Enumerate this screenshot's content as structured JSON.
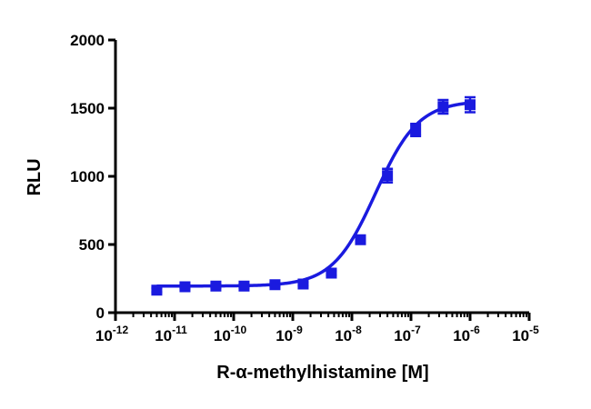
{
  "chart_data": {
    "type": "scatter",
    "title": "",
    "xlabel": "R-α-methylhistamine [M]",
    "ylabel": "RLU",
    "x_scale": "log10",
    "xlim": [
      1e-12,
      1e-05
    ],
    "ylim": [
      0,
      2000
    ],
    "x_ticks": [
      {
        "base": "10",
        "exp": "-12",
        "value": 1e-12
      },
      {
        "base": "10",
        "exp": "-11",
        "value": 1e-11
      },
      {
        "base": "10",
        "exp": "-10",
        "value": 1e-10
      },
      {
        "base": "10",
        "exp": "-9",
        "value": 1e-09
      },
      {
        "base": "10",
        "exp": "-8",
        "value": 1e-08
      },
      {
        "base": "10",
        "exp": "-7",
        "value": 1e-07
      },
      {
        "base": "10",
        "exp": "-6",
        "value": 1e-06
      },
      {
        "base": "10",
        "exp": "-5",
        "value": 1e-05
      }
    ],
    "y_ticks": [
      "0",
      "500",
      "1000",
      "1500",
      "2000"
    ],
    "grid": false,
    "legend": "none",
    "series": [
      {
        "color": "#1a1adf",
        "marker": "square",
        "fit": "sigmoidal dose-response",
        "points": [
          {
            "x": 5e-12,
            "y": 165,
            "err": 15
          },
          {
            "x": 1.5e-11,
            "y": 190,
            "err": 12
          },
          {
            "x": 5e-11,
            "y": 195,
            "err": 12
          },
          {
            "x": 1.5e-10,
            "y": 195,
            "err": 12
          },
          {
            "x": 5e-10,
            "y": 205,
            "err": 12
          },
          {
            "x": 1.5e-09,
            "y": 210,
            "err": 12
          },
          {
            "x": 4.5e-09,
            "y": 290,
            "err": 15
          },
          {
            "x": 1.4e-08,
            "y": 535,
            "err": 25
          },
          {
            "x": 4e-08,
            "y": 1005,
            "err": 50
          },
          {
            "x": 1.2e-07,
            "y": 1340,
            "err": 45
          },
          {
            "x": 3.5e-07,
            "y": 1510,
            "err": 50
          },
          {
            "x": 1e-06,
            "y": 1525,
            "err": 55
          }
        ]
      }
    ],
    "fit_curve": {
      "bottom": 195,
      "top": 1555,
      "log_ec50": -7.6,
      "hill_slope": 1.2
    }
  }
}
